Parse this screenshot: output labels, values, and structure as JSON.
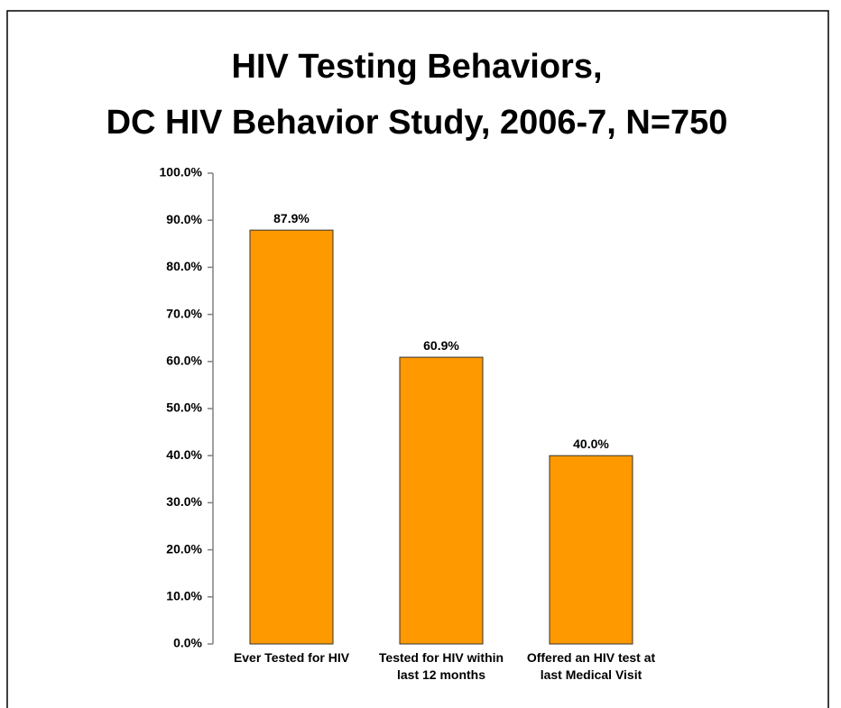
{
  "chart_data": {
    "type": "bar",
    "title": [
      "HIV Testing Behaviors,",
      "DC HIV Behavior Study, 2006-7, N=750"
    ],
    "categories": [
      "Ever Tested for HIV",
      "Tested for HIV within last 12 months",
      "Offered an HIV test at last Medical Visit"
    ],
    "values": [
      87.9,
      60.9,
      40.0
    ],
    "value_labels": [
      "87.9%",
      "60.9%",
      "40.0%"
    ],
    "color": "#ff9900",
    "ylim": [
      0,
      100
    ],
    "yticks": [
      {
        "value": 0,
        "label": "0.0%"
      },
      {
        "value": 10,
        "label": "10.0%"
      },
      {
        "value": 20,
        "label": "20.0%"
      },
      {
        "value": 30,
        "label": "30.0%"
      },
      {
        "value": 40,
        "label": "40.0%"
      },
      {
        "value": 50,
        "label": "50.0%"
      },
      {
        "value": 60,
        "label": "60.0%"
      },
      {
        "value": 70,
        "label": "70.0%"
      },
      {
        "value": 80,
        "label": "80.0%"
      },
      {
        "value": 90,
        "label": "90.0%"
      },
      {
        "value": 100,
        "label": "100.0%"
      }
    ],
    "grid": false
  }
}
